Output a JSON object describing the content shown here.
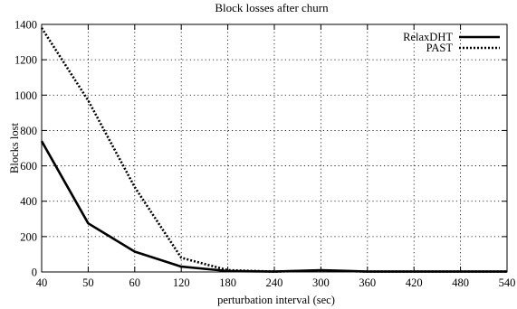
{
  "chart_data": {
    "type": "line",
    "title": "Block losses after churn",
    "xlabel": "perturbation interval (sec)",
    "ylabel": "Blocks lost",
    "categories": [
      "40",
      "50",
      "60",
      "120",
      "180",
      "240",
      "300",
      "360",
      "420",
      "480",
      "540"
    ],
    "y_ticks": [
      "0",
      "200",
      "400",
      "600",
      "800",
      "1000",
      "1200",
      "1400"
    ],
    "ylim": [
      0,
      1400
    ],
    "grid": true,
    "legend_position": "top-right",
    "series": [
      {
        "name": "RelaxDHT",
        "style": "solid",
        "color": "#000000",
        "values": [
          740,
          275,
          115,
          30,
          5,
          2,
          10,
          2,
          2,
          2,
          2
        ]
      },
      {
        "name": "PAST",
        "style": "dotted",
        "color": "#000000",
        "values": [
          1380,
          970,
          480,
          80,
          10,
          2,
          8,
          2,
          2,
          2,
          2
        ]
      }
    ]
  }
}
